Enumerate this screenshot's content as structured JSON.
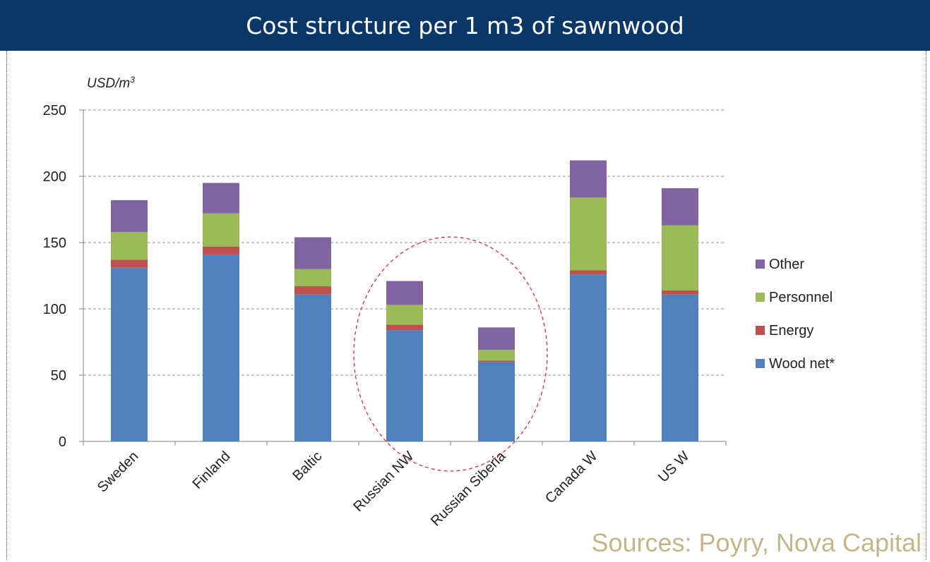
{
  "header": {
    "title": "Cost structure per 1 m3 of sawnwood"
  },
  "footer": {
    "sources": "Sources: Poyry, Nova Capital"
  },
  "chart_data": {
    "type": "bar",
    "stacked": true,
    "ylabel_prefix": "USD/m",
    "ylabel_superscript": "3",
    "xlabel": "",
    "ylim": [
      0,
      250
    ],
    "yticks": [
      0,
      50,
      100,
      150,
      200,
      250
    ],
    "grid": true,
    "legend_position": "right",
    "categories": [
      "Sweden",
      "Finland",
      "Baltic",
      "Russian NW",
      "Russian Siberia",
      "Canada W",
      "US W"
    ],
    "series": [
      {
        "name": "Wood net*",
        "color": "#4f81bd",
        "values": [
          131,
          141,
          111,
          84,
          60,
          126,
          111
        ]
      },
      {
        "name": "Energy",
        "color": "#c0504d",
        "values": [
          6,
          6,
          6,
          4,
          1,
          3,
          3
        ]
      },
      {
        "name": "Personnel",
        "color": "#9bbb59",
        "values": [
          21,
          25,
          13,
          15,
          8,
          55,
          49
        ]
      },
      {
        "name": "Other",
        "color": "#8064a2",
        "values": [
          24,
          23,
          24,
          18,
          17,
          28,
          28
        ]
      }
    ],
    "legend_order": [
      "Other",
      "Personnel",
      "Energy",
      "Wood net*"
    ],
    "annotation": {
      "type": "dashed-ellipse",
      "color": "#e03030",
      "encloses": [
        "Russian NW",
        "Russian Siberia"
      ]
    }
  }
}
